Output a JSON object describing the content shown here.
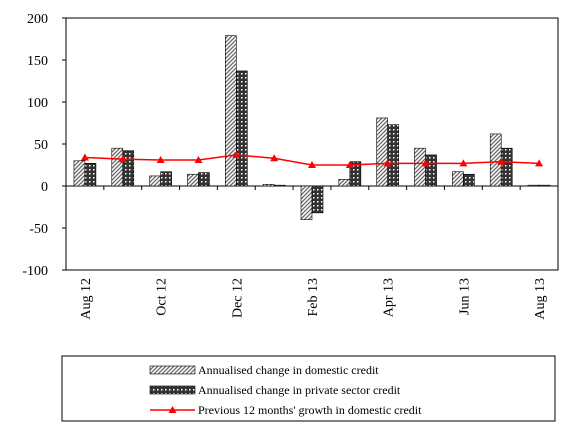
{
  "chart_data": {
    "type": "bar",
    "categories": [
      "Aug 12",
      null,
      "Oct 12",
      null,
      "Dec 12",
      null,
      "Feb 13",
      null,
      "Apr 13",
      null,
      "Jun 13",
      null,
      "Aug 13"
    ],
    "series": [
      {
        "name": "Annualised change in domestic credit",
        "type": "bar",
        "color": "#666666",
        "pattern": "stripes",
        "values": [
          30,
          45,
          12,
          14,
          179,
          2,
          -40,
          8,
          81,
          45,
          17,
          62,
          1
        ]
      },
      {
        "name": "Annualised change in private sector credit",
        "type": "bar",
        "color": "#333333",
        "pattern": "crosshatch",
        "values": [
          27,
          42,
          17,
          16,
          137,
          1,
          -32,
          29,
          73,
          37,
          14,
          45,
          1
        ]
      },
      {
        "name": "Previous 12 months' growth in domestic credit",
        "type": "line",
        "color": "#ff0000",
        "values": [
          34,
          32,
          31,
          31,
          37,
          33,
          25,
          25,
          27,
          27,
          27,
          29,
          27
        ]
      }
    ],
    "ylim": [
      -100,
      200
    ],
    "yticks": [
      -100,
      -50,
      0,
      50,
      100,
      150,
      200
    ],
    "grid": false,
    "legend": "bottom"
  }
}
